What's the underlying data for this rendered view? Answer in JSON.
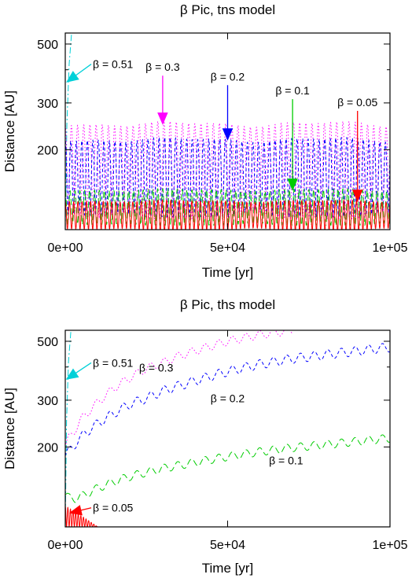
{
  "chart_data": [
    {
      "type": "line",
      "title": "β Pic, tns model",
      "xlabel": "Time [yr]",
      "ylabel": "Distance [AU]",
      "xlim": [
        0,
        100000
      ],
      "ylim": [
        100,
        550
      ],
      "y_scale": "log",
      "xticks": [
        "0e+00",
        "5e+04",
        "1e+05"
      ],
      "xtick_values": [
        0,
        50000,
        100000
      ],
      "yticks": [
        "200",
        "300",
        "500"
      ],
      "ytick_values": [
        200,
        300,
        500
      ],
      "grid": false,
      "series": [
        {
          "label": "β = 0.51",
          "color": "#00d0d8",
          "style": "dash-dot",
          "kind": "escape",
          "x": [
            0,
            500,
            1200,
            2000
          ],
          "y": [
            100,
            250,
            420,
            560
          ]
        },
        {
          "label": "β = 0.3",
          "color": "#ff00ff",
          "style": "dotted",
          "kind": "oscillation",
          "x_start": 0,
          "x_end": 100000,
          "min": 110,
          "max": 250,
          "period_yr": 1900
        },
        {
          "label": "β = 0.2",
          "color": "#0000ff",
          "style": "dashed",
          "kind": "oscillation",
          "x_start": 0,
          "x_end": 100000,
          "min": 112,
          "max": 218,
          "period_yr": 1700
        },
        {
          "label": "β = 0.1",
          "color": "#00cc00",
          "style": "long-dash",
          "kind": "oscillation",
          "x_start": 0,
          "x_end": 100000,
          "min": 104,
          "max": 141,
          "period_yr": 1500
        },
        {
          "label": "β = 0.05",
          "color": "#ff0000",
          "style": "solid",
          "kind": "oscillation",
          "x_start": 0,
          "x_end": 100000,
          "min": 100,
          "max": 128,
          "period_yr": 1300
        }
      ],
      "annotations": [
        {
          "text": "β = 0.51",
          "color": "#00d0d8",
          "tip": [
            500,
            360
          ],
          "tail": [
            8000,
            420
          ]
        },
        {
          "text": "β = 0.3",
          "color": "#ff00ff",
          "tip": [
            30000,
            250
          ],
          "tail": [
            30000,
            380
          ]
        },
        {
          "text": "β = 0.2",
          "color": "#0000ff",
          "tip": [
            50000,
            218
          ],
          "tail": [
            50000,
            350
          ]
        },
        {
          "text": "β = 0.1",
          "color": "#00cc00",
          "tip": [
            70000,
            141
          ],
          "tail": [
            70000,
            310
          ]
        },
        {
          "text": "β = 0.05",
          "color": "#ff0000",
          "tip": [
            90000,
            128
          ],
          "tail": [
            90000,
            280
          ]
        }
      ]
    },
    {
      "type": "line",
      "title": "β Pic, ths model",
      "xlabel": "Time [yr]",
      "ylabel": "Distance [AU]",
      "xlim": [
        0,
        100000
      ],
      "ylim": [
        100,
        550
      ],
      "y_scale": "log",
      "xticks": [
        "0e+00",
        "5e+04",
        "1e+05"
      ],
      "xtick_values": [
        0,
        50000,
        100000
      ],
      "yticks": [
        "200",
        "300",
        "500"
      ],
      "ytick_values": [
        200,
        300,
        500
      ],
      "grid": false,
      "series": [
        {
          "label": "β = 0.51",
          "color": "#00d0d8",
          "style": "dash-dot",
          "kind": "escape",
          "x": [
            0,
            400,
            1000,
            1800
          ],
          "y": [
            100,
            250,
            420,
            560
          ]
        },
        {
          "label": "β = 0.3",
          "color": "#ff00ff",
          "style": "dotted",
          "kind": "growth",
          "x": [
            0,
            1000,
            3000,
            5000,
            8000,
            12000,
            16000,
            20000,
            25000,
            30000,
            35000,
            40000,
            45000,
            50000,
            55000,
            60000,
            65000,
            70000
          ],
          "y": [
            200,
            215,
            232,
            255,
            278,
            310,
            340,
            365,
            395,
            415,
            440,
            460,
            480,
            500,
            515,
            530,
            540,
            550
          ],
          "wiggle": 0.035
        },
        {
          "label": "β = 0.2",
          "color": "#0000ff",
          "style": "dashed",
          "kind": "growth",
          "x": [
            0,
            1000,
            3000,
            6000,
            10000,
            15000,
            20000,
            25000,
            30000,
            40000,
            50000,
            60000,
            70000,
            80000,
            90000,
            100000
          ],
          "y": [
            185,
            192,
            205,
            225,
            245,
            268,
            290,
            305,
            325,
            355,
            385,
            410,
            430,
            445,
            460,
            475
          ],
          "wiggle": 0.04
        },
        {
          "label": "β = 0.1",
          "color": "#00cc00",
          "style": "long-dash",
          "kind": "growth",
          "x": [
            0,
            1000,
            3000,
            6000,
            10000,
            15000,
            20000,
            30000,
            40000,
            50000,
            60000,
            70000,
            80000,
            90000,
            100000
          ],
          "y": [
            132,
            129,
            128,
            132,
            140,
            148,
            155,
            166,
            175,
            184,
            192,
            199,
            204,
            210,
            216
          ],
          "wiggle": 0.035
        },
        {
          "label": "β = 0.05",
          "color": "#ff0000",
          "style": "solid",
          "kind": "decay",
          "x_start": 0,
          "x_end": 10000,
          "min": 100,
          "max": 120,
          "period_yr": 800
        }
      ],
      "annotations": [
        {
          "text": "β = 0.51",
          "color": "#00d0d8",
          "tip": [
            400,
            360
          ],
          "tail": [
            8000,
            415
          ]
        },
        {
          "text": "β = 0.3",
          "color": "#ff00ff",
          "label_at": [
            28000,
            385
          ]
        },
        {
          "text": "β = 0.2",
          "color": "#0000ff",
          "label_at": [
            50000,
            295
          ]
        },
        {
          "text": "β = 0.1",
          "color": "#00cc00",
          "label_at": [
            68000,
            172
          ]
        },
        {
          "text": "β = 0.05",
          "color": "#ff0000",
          "tip": [
            1500,
            113
          ],
          "tail": [
            8000,
            118
          ]
        }
      ]
    }
  ]
}
